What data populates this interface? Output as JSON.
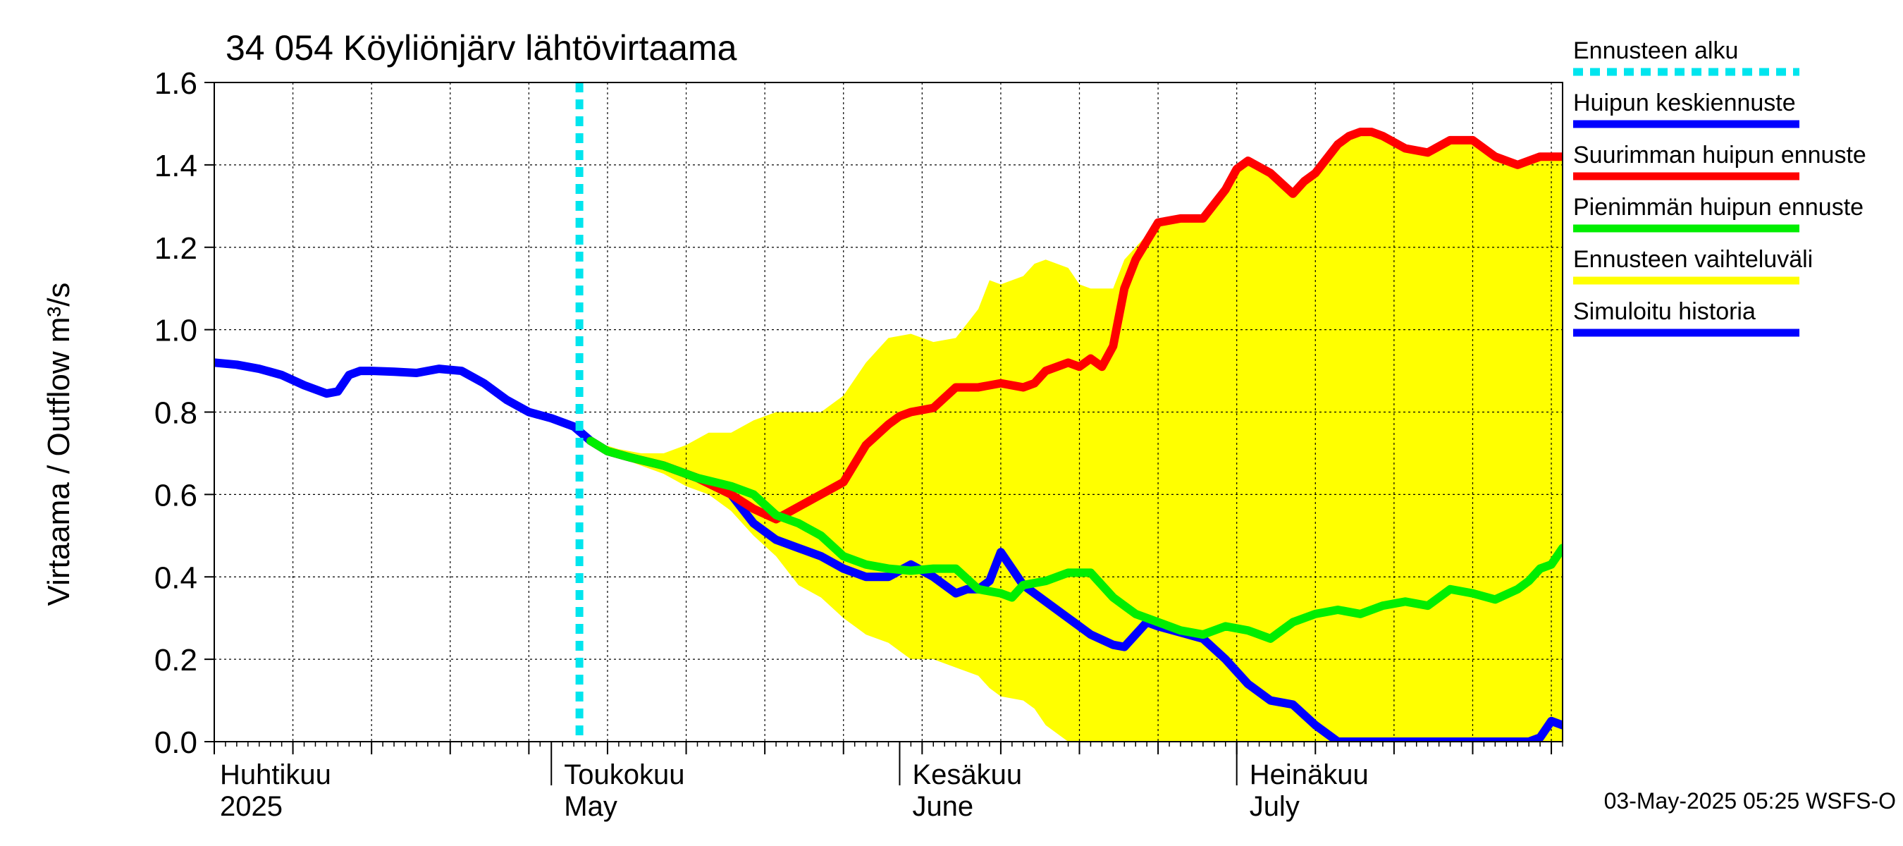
{
  "chart_data": {
    "type": "line",
    "title": "34 054 Köyliönjärv lähtövirtaama",
    "ylabel": "Virtaama / Outflow    m³/s",
    "ylim": [
      0,
      1.6
    ],
    "yticks": [
      "0.0",
      "0.2",
      "0.4",
      "0.6",
      "0.8",
      "1.0",
      "1.2",
      "1.4",
      "1.6"
    ],
    "x_domain_days": [
      0,
      120
    ],
    "x_start_date": "2025-03-31",
    "forecast_start_day": 32.5,
    "month_labels": [
      {
        "day": 0,
        "fi": "Huhtikuu",
        "en": "2025"
      },
      {
        "day": 30,
        "fi": "Toukokuu",
        "en": "May"
      },
      {
        "day": 61,
        "fi": "Kesäkuu",
        "en": "June"
      },
      {
        "day": 91,
        "fi": "Heinäkuu",
        "en": "July"
      }
    ],
    "legend": [
      {
        "label": "Ennusteen alku",
        "color": "#00e5ee",
        "style": "dotted"
      },
      {
        "label": "Huipun keskiennuste",
        "color": "#0000ff",
        "style": "solid"
      },
      {
        "label": "Suurimman huipun ennuste",
        "color": "#ff0000",
        "style": "solid"
      },
      {
        "label": "Pienimmän huipun ennuste",
        "color": "#00ee00",
        "style": "solid"
      },
      {
        "label": "Ennusteen vaihteluväli",
        "color": "#ffff00",
        "style": "solid"
      },
      {
        "label": "Simuloitu historia",
        "color": "#0000ff",
        "style": "solid"
      }
    ],
    "footer": "03-May-2025 05:25 WSFS-O",
    "series": [
      {
        "name": "Simuloitu historia",
        "color": "#0000ff",
        "x": [
          0,
          2,
          4,
          6,
          8,
          10,
          11,
          12,
          13,
          14,
          16,
          18,
          20,
          22,
          24,
          26,
          28,
          30,
          32,
          33.5
        ],
        "y": [
          0.92,
          0.915,
          0.905,
          0.89,
          0.865,
          0.845,
          0.85,
          0.89,
          0.9,
          0.9,
          0.898,
          0.895,
          0.905,
          0.9,
          0.87,
          0.83,
          0.8,
          0.785,
          0.765,
          0.73
        ]
      },
      {
        "name": "Huipun keskiennuste",
        "color": "#0000ff",
        "x": [
          33.5,
          35,
          37,
          40,
          43,
          46,
          48,
          50,
          52,
          54,
          56,
          57,
          58,
          59,
          60,
          62,
          64,
          66,
          67,
          67.5,
          68,
          69,
          70,
          72,
          74,
          76,
          78,
          80,
          81,
          82,
          83,
          84,
          86,
          88,
          90,
          92,
          94,
          96,
          98,
          100,
          101,
          102,
          103,
          104,
          106,
          108,
          110,
          112,
          114,
          116,
          117,
          118,
          119,
          120
        ],
        "y": [
          0.73,
          0.705,
          0.69,
          0.67,
          0.64,
          0.6,
          0.53,
          0.49,
          0.47,
          0.45,
          0.42,
          0.41,
          0.4,
          0.4,
          0.4,
          0.43,
          0.4,
          0.36,
          0.37,
          0.37,
          0.37,
          0.39,
          0.46,
          0.38,
          0.34,
          0.3,
          0.26,
          0.235,
          0.23,
          0.26,
          0.29,
          0.28,
          0.265,
          0.25,
          0.2,
          0.14,
          0.1,
          0.09,
          0.04,
          0.0,
          0.0,
          0.0,
          0.0,
          0.0,
          0.0,
          0.0,
          0.0,
          0.0,
          0.0,
          0.0,
          0.0,
          0.01,
          0.05,
          0.04
        ]
      },
      {
        "name": "Suurimman huipun ennuste",
        "color": "#ff0000",
        "x": [
          33.5,
          35,
          37,
          40,
          43,
          46,
          48,
          50,
          52,
          54,
          56,
          58,
          60,
          61,
          62,
          64,
          66,
          68,
          70,
          72,
          73,
          74,
          76,
          77,
          78,
          79,
          80,
          81,
          82,
          84,
          86,
          88,
          90,
          91,
          92,
          94,
          96,
          97,
          98,
          100,
          101,
          102,
          103,
          104,
          106,
          108,
          110,
          112,
          114,
          116,
          118,
          120
        ],
        "y": [
          0.73,
          0.705,
          0.69,
          0.67,
          0.64,
          0.6,
          0.565,
          0.54,
          0.57,
          0.6,
          0.63,
          0.72,
          0.77,
          0.79,
          0.8,
          0.81,
          0.86,
          0.86,
          0.87,
          0.86,
          0.87,
          0.9,
          0.92,
          0.91,
          0.93,
          0.91,
          0.96,
          1.1,
          1.17,
          1.26,
          1.27,
          1.27,
          1.34,
          1.39,
          1.41,
          1.38,
          1.33,
          1.36,
          1.38,
          1.45,
          1.47,
          1.48,
          1.48,
          1.47,
          1.44,
          1.43,
          1.46,
          1.46,
          1.42,
          1.4,
          1.42,
          1.42
        ]
      },
      {
        "name": "Pienimmän huipun ennuste",
        "color": "#00ee00",
        "x": [
          33.5,
          35,
          37,
          40,
          43,
          46,
          48,
          50,
          52,
          54,
          56,
          58,
          60,
          62,
          64,
          66,
          68,
          70,
          71,
          72,
          74,
          76,
          78,
          80,
          81,
          82,
          84,
          86,
          88,
          90,
          92,
          94,
          96,
          98,
          100,
          102,
          104,
          106,
          108,
          110,
          112,
          114,
          116,
          117,
          118,
          119,
          120
        ],
        "y": [
          0.73,
          0.705,
          0.69,
          0.67,
          0.64,
          0.62,
          0.6,
          0.55,
          0.53,
          0.5,
          0.45,
          0.43,
          0.42,
          0.415,
          0.42,
          0.42,
          0.37,
          0.36,
          0.35,
          0.38,
          0.39,
          0.41,
          0.41,
          0.35,
          0.33,
          0.31,
          0.29,
          0.27,
          0.26,
          0.28,
          0.27,
          0.25,
          0.29,
          0.31,
          0.32,
          0.31,
          0.33,
          0.34,
          0.33,
          0.37,
          0.36,
          0.345,
          0.37,
          0.39,
          0.42,
          0.43,
          0.47
        ]
      },
      {
        "name": "Ennusteen vaihteluväli",
        "color": "#ffff00",
        "x": [
          33.5,
          36,
          38,
          40,
          42,
          44,
          46,
          48,
          50,
          52,
          54,
          56,
          58,
          60,
          62,
          64,
          66,
          68,
          69,
          70,
          72,
          73,
          74,
          76,
          77,
          78,
          79,
          80,
          81,
          82,
          84,
          86,
          88,
          90,
          91,
          92,
          94,
          96,
          97,
          98,
          100,
          101,
          102,
          103,
          104,
          106,
          108,
          110,
          112,
          114,
          116,
          118,
          120
        ],
        "upper": [
          0.73,
          0.71,
          0.7,
          0.7,
          0.72,
          0.75,
          0.75,
          0.78,
          0.8,
          0.8,
          0.8,
          0.84,
          0.92,
          0.98,
          0.99,
          0.97,
          0.98,
          1.05,
          1.12,
          1.11,
          1.13,
          1.16,
          1.17,
          1.15,
          1.11,
          1.1,
          1.1,
          1.1,
          1.17,
          1.2,
          1.26,
          1.27,
          1.27,
          1.34,
          1.39,
          1.41,
          1.38,
          1.33,
          1.36,
          1.38,
          1.45,
          1.47,
          1.48,
          1.48,
          1.47,
          1.44,
          1.43,
          1.46,
          1.46,
          1.42,
          1.4,
          1.42,
          1.42
        ],
        "lower": [
          0.73,
          0.69,
          0.67,
          0.65,
          0.62,
          0.6,
          0.56,
          0.5,
          0.45,
          0.38,
          0.35,
          0.3,
          0.26,
          0.24,
          0.2,
          0.2,
          0.18,
          0.16,
          0.13,
          0.11,
          0.1,
          0.08,
          0.04,
          0.0,
          0.0,
          0.0,
          0.0,
          0.0,
          0.0,
          0.0,
          0.0,
          0.0,
          0.0,
          0.0,
          0.0,
          0.0,
          0.0,
          0.0,
          0.0,
          0.0,
          0.0,
          0.0,
          0.0,
          0.0,
          0.0,
          0.0,
          0.0,
          0.0,
          0.0,
          0.0,
          0.0,
          0.0,
          0.0
        ]
      }
    ]
  }
}
